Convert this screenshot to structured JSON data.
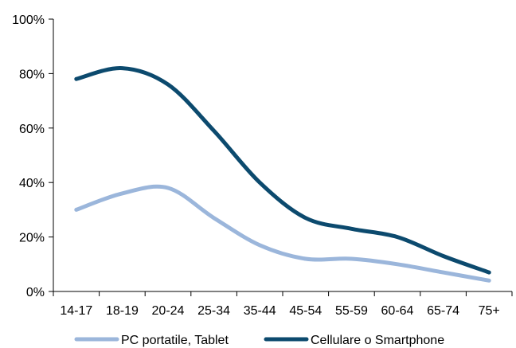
{
  "chart_data": {
    "type": "line",
    "title": "",
    "xlabel": "",
    "ylabel": "",
    "categories": [
      "14-17",
      "18-19",
      "20-24",
      "25-34",
      "35-44",
      "45-54",
      "55-59",
      "60-64",
      "65-74",
      "75+"
    ],
    "ylim": [
      0,
      100
    ],
    "yticks": [
      "0%",
      "20%",
      "40%",
      "60%",
      "80%",
      "100%"
    ],
    "ytick_values": [
      0,
      20,
      40,
      60,
      80,
      100
    ],
    "grid": false,
    "legend_position": "bottom",
    "series": [
      {
        "name": "PC portatile, Tablet",
        "color": "#9bb6db",
        "values": [
          30,
          36,
          38,
          27,
          17,
          12,
          12,
          10,
          7,
          4
        ]
      },
      {
        "name": "Cellulare o Smartphone",
        "color": "#0c4a6e",
        "values": [
          78,
          82,
          76,
          59,
          40,
          27,
          23,
          20,
          13,
          7
        ]
      }
    ]
  }
}
